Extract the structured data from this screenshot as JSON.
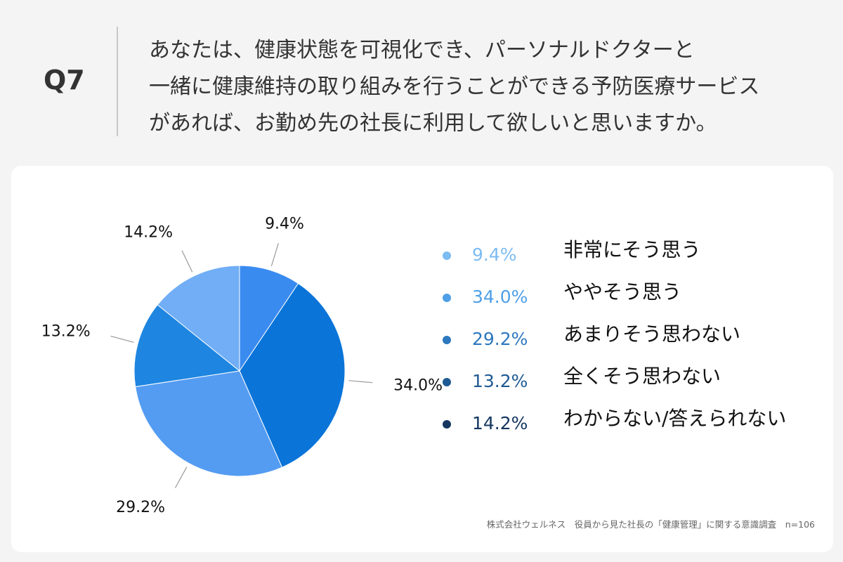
{
  "question": {
    "number": "Q7",
    "lines": [
      "あなたは、健康状態を可視化でき、パーソナルドクターと",
      "一緒に健康維持の取り組みを行うことができる予防医療サービス",
      "があれば、お勤め先の社長に利用して欲しいと思いますか。"
    ]
  },
  "chart_data": {
    "type": "pie",
    "slices": [
      {
        "label": "非常にそう思う",
        "value": 9.4,
        "value_label": "9.4%",
        "color": "#3a8bf0",
        "legend_color": "#7cbcf2"
      },
      {
        "label": "ややそう思う",
        "value": 34.0,
        "value_label": "34.0%",
        "color": "#0a74d9",
        "legend_color": "#4f9fe6"
      },
      {
        "label": "あまりそう思わない",
        "value": 29.2,
        "value_label": "29.2%",
        "color": "#549cf2",
        "legend_color": "#2d78bf"
      },
      {
        "label": "全くそう思わない",
        "value": 13.2,
        "value_label": "13.2%",
        "color": "#1e86e0",
        "legend_color": "#1f5a94"
      },
      {
        "label": "わからない/答えられない",
        "value": 14.2,
        "value_label": "14.2%",
        "color": "#71aef5",
        "legend_color": "#14365f"
      }
    ],
    "start_angle": "12 o'clock",
    "direction": "clockwise",
    "legend_placement": "right"
  },
  "footer": {
    "source": "株式会社ウェルネス　役員から見た社長の「健康管理」に関する意識調査　n=106"
  }
}
